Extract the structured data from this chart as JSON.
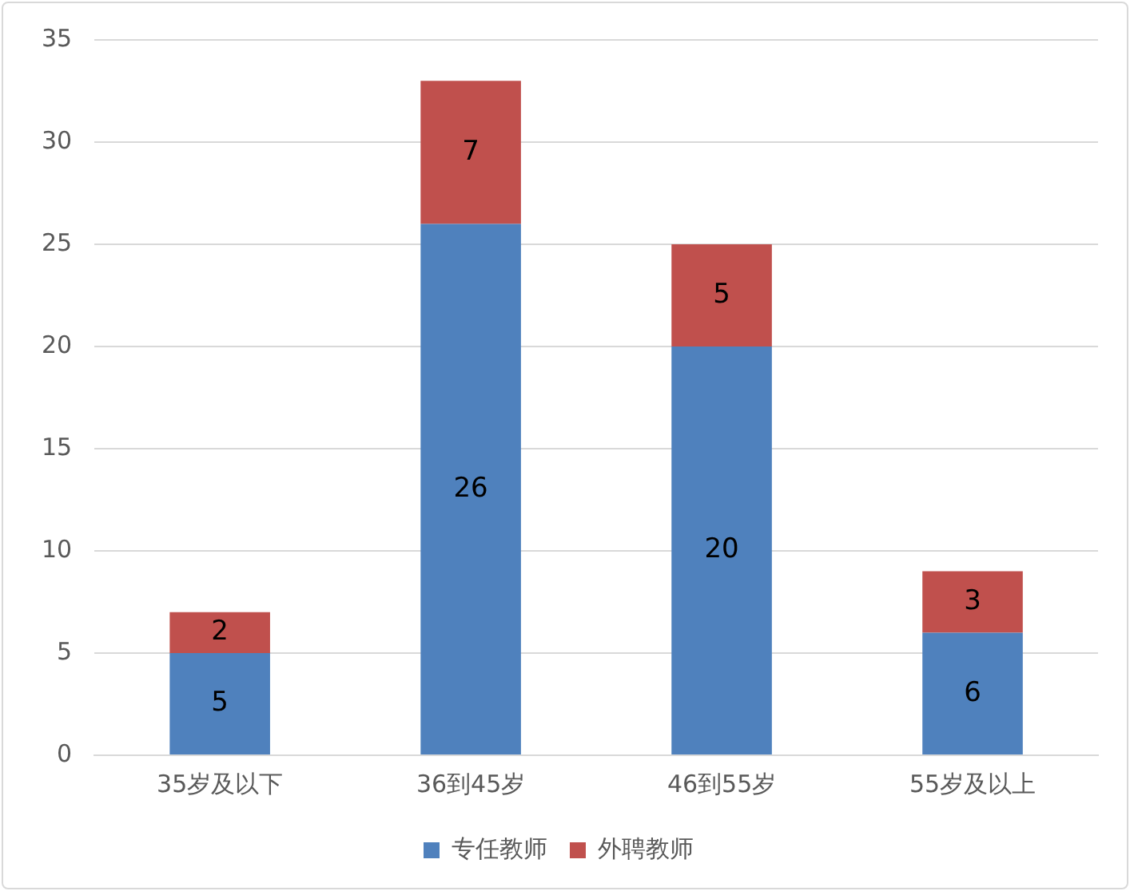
{
  "chart_data": {
    "type": "bar",
    "stacked": true,
    "categories": [
      "35岁及以下",
      "36到45岁",
      "46到55岁",
      "55岁及以上"
    ],
    "series": [
      {
        "name": "专任教师",
        "color": "#4f81bd",
        "values": [
          5,
          26,
          20,
          6
        ]
      },
      {
        "name": "外聘教师",
        "color": "#c0504d",
        "values": [
          2,
          7,
          5,
          3
        ]
      }
    ],
    "ylim": [
      0,
      35
    ],
    "yticks": [
      0,
      5,
      10,
      15,
      20,
      25,
      30,
      35
    ],
    "grid": "y",
    "legend": "bottom",
    "data_labels": true
  }
}
